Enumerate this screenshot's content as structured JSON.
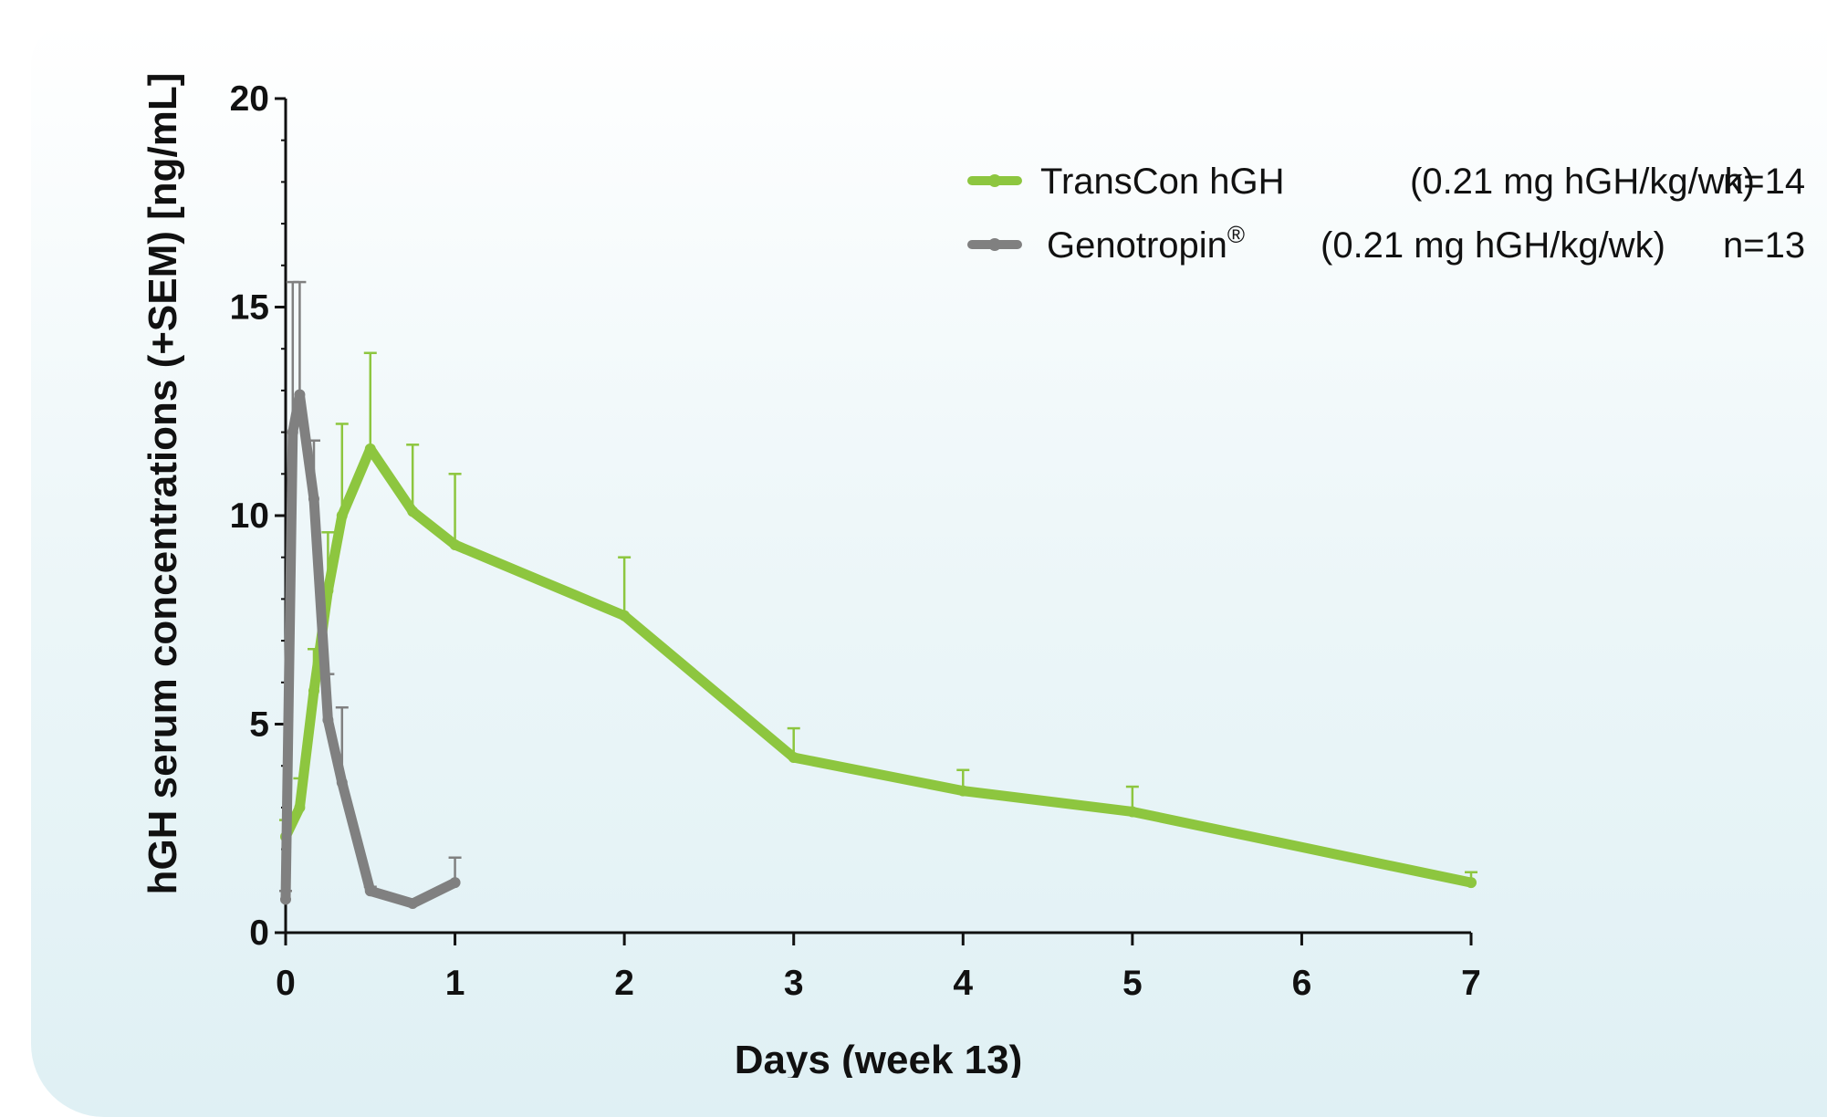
{
  "chart_data": {
    "type": "line",
    "xlabel": "Days (week 13)",
    "ylabel": "hGH serum concentrations (+SEM) [ng/mL]",
    "xlim": [
      0,
      7
    ],
    "ylim": [
      0,
      20
    ],
    "xticks": [
      0,
      1,
      2,
      3,
      4,
      5,
      6,
      7
    ],
    "yticks": [
      0,
      5,
      10,
      15,
      20
    ],
    "grid": false,
    "legend_position": "top-right",
    "series": [
      {
        "name": "TransCon hGH",
        "dose": "(0.21 mg hGH/kg/wk)",
        "n_label": "n=14",
        "color": "#8dc63f",
        "x": [
          0,
          0.083,
          0.167,
          0.25,
          0.333,
          0.5,
          0.75,
          1,
          2,
          3,
          4,
          5,
          7
        ],
        "y": [
          2.3,
          3.0,
          5.8,
          8.2,
          10.0,
          11.6,
          10.1,
          9.3,
          7.6,
          4.2,
          3.4,
          2.9,
          1.2
        ],
        "sem": [
          0.4,
          0.7,
          1.0,
          1.4,
          2.2,
          2.3,
          1.6,
          1.7,
          1.4,
          0.7,
          0.5,
          0.6,
          0.25
        ]
      },
      {
        "name": "Genotropin®",
        "dose": "(0.21 mg hGH/kg/wk)",
        "n_label": "n=13",
        "color": "#808080",
        "x": [
          0,
          0.042,
          0.083,
          0.167,
          0.25,
          0.333,
          0.5,
          0.75,
          1
        ],
        "y": [
          0.8,
          12.0,
          12.9,
          10.4,
          5.1,
          3.6,
          1.0,
          0.7,
          1.2
        ],
        "sem": [
          0.2,
          3.6,
          2.7,
          1.4,
          1.1,
          1.8,
          0.1,
          0.1,
          0.6
        ]
      }
    ]
  }
}
